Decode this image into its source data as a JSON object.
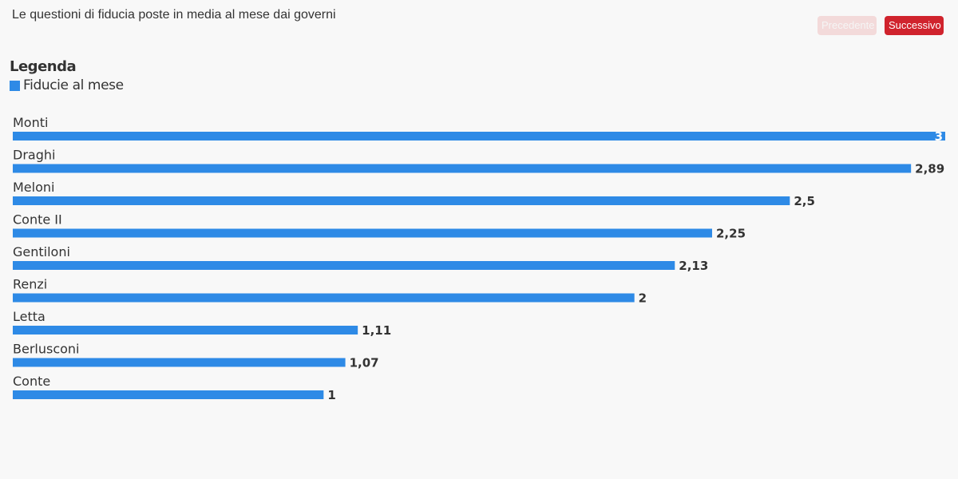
{
  "header": {
    "title": "Le questioni di fiducia poste in media al mese dai governi",
    "prev_label": "Precedente",
    "next_label": "Successivo"
  },
  "legend": {
    "title": "Legenda",
    "items": [
      {
        "label": "Fiducie al mese",
        "color": "#2e8ae6"
      }
    ]
  },
  "chart_data": {
    "type": "bar",
    "orientation": "horizontal",
    "title": "Le questioni di fiducia poste in media al mese dai governi",
    "categories": [
      "Monti",
      "Draghi",
      "Meloni",
      "Conte II",
      "Gentiloni",
      "Renzi",
      "Letta",
      "Berlusconi",
      "Conte"
    ],
    "series": [
      {
        "name": "Fiducie al mese",
        "color": "#2e8ae6",
        "values": [
          3,
          2.89,
          2.5,
          2.25,
          2.13,
          2,
          1.11,
          1.07,
          1
        ]
      }
    ],
    "data_labels": [
      "3",
      "2,89",
      "2,5",
      "2,25",
      "2,13",
      "2",
      "1,11",
      "1,07",
      "1"
    ],
    "xlim": [
      0,
      3
    ],
    "grid": false,
    "legend_position": "top-left"
  }
}
